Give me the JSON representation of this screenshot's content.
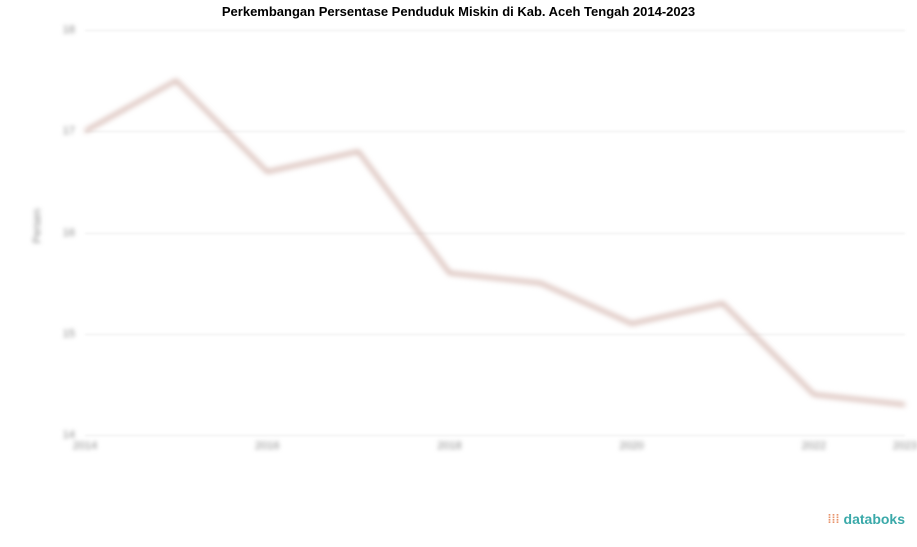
{
  "chart": {
    "type": "line",
    "title": "Perkembangan Persentase Penduduk Miskin di Kab. Aceh Tengah 2014-2023",
    "title_fontsize": 13,
    "title_fontweight": "bold",
    "ylabel": "Persen",
    "ylabel_fontsize": 11,
    "years": [
      2014,
      2015,
      2016,
      2017,
      2018,
      2019,
      2020,
      2021,
      2022,
      2023
    ],
    "values": [
      17.0,
      17.5,
      16.6,
      16.8,
      15.6,
      15.5,
      15.1,
      15.3,
      14.4,
      14.3
    ],
    "line_color": "#c9a39a",
    "line_width": 3,
    "ylim": [
      14,
      18
    ],
    "ytick_step": 1,
    "yticks": [
      14,
      15,
      16,
      17,
      18
    ],
    "xticks": [
      2014,
      2016,
      2018,
      2020,
      2022,
      2023
    ],
    "background_color": "#ffffff",
    "grid_color": "#e8e8e8",
    "blur_applied": true
  },
  "watermark": {
    "text": "databoks",
    "icon": "⁞⁞⁞",
    "text_color": "#3aa9a9",
    "icon_color": "#e8946b"
  }
}
